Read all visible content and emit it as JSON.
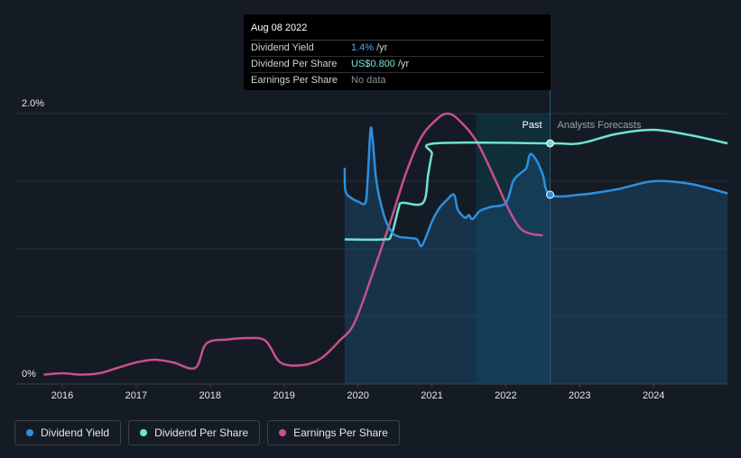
{
  "tooltip": {
    "date": "Aug 08 2022",
    "rows": [
      {
        "name": "Dividend Yield",
        "value": "1.4%",
        "unit": "/yr"
      },
      {
        "name": "Dividend Per Share",
        "value": "US$0.800",
        "unit": "/yr"
      },
      {
        "name": "Earnings Per Share",
        "value": "No data",
        "unit": ""
      }
    ]
  },
  "regions": {
    "past": "Past",
    "forecast": "Analysts Forecasts"
  },
  "legend": [
    {
      "label": "Dividend Yield",
      "color": "#2c8fe0"
    },
    {
      "label": "Dividend Per Share",
      "color": "#6fe3cf"
    },
    {
      "label": "Earnings Per Share",
      "color": "#c8508a"
    }
  ],
  "colors": {
    "background": "#151b24",
    "dividend_yield": "#2c8fe0",
    "dividend_per_share": "#6fe3cf",
    "earnings_per_share": "#c8508a",
    "past_highlight": "#0e3a4a"
  },
  "chart_data": {
    "type": "line",
    "x_ticks": [
      "2016",
      "2017",
      "2018",
      "2019",
      "2020",
      "2021",
      "2022",
      "2023",
      "2024"
    ],
    "y_tick_labels": {
      "top": "2.0%",
      "bottom": "0%"
    },
    "xlim": [
      2015.7,
      2025.0
    ],
    "ylim": [
      0,
      2.0
    ],
    "grid": true,
    "highlight_range": [
      2021.6,
      2022.6
    ],
    "forecast_start": 2022.6,
    "series": [
      {
        "name": "Dividend Yield",
        "unit": "%",
        "points": [
          [
            2019.82,
            1.6
          ],
          [
            2019.83,
            1.43
          ],
          [
            2019.9,
            1.38
          ],
          [
            2020.0,
            1.35
          ],
          [
            2020.1,
            1.34
          ],
          [
            2020.13,
            1.5
          ],
          [
            2020.17,
            1.88
          ],
          [
            2020.2,
            1.8
          ],
          [
            2020.25,
            1.5
          ],
          [
            2020.35,
            1.25
          ],
          [
            2020.45,
            1.13
          ],
          [
            2020.55,
            1.09
          ],
          [
            2020.7,
            1.08
          ],
          [
            2020.8,
            1.07
          ],
          [
            2020.85,
            1.02
          ],
          [
            2020.9,
            1.06
          ],
          [
            2021.0,
            1.2
          ],
          [
            2021.1,
            1.3
          ],
          [
            2021.2,
            1.36
          ],
          [
            2021.3,
            1.4
          ],
          [
            2021.35,
            1.29
          ],
          [
            2021.45,
            1.23
          ],
          [
            2021.5,
            1.25
          ],
          [
            2021.55,
            1.22
          ],
          [
            2021.65,
            1.28
          ],
          [
            2021.8,
            1.31
          ],
          [
            2022.0,
            1.34
          ],
          [
            2022.1,
            1.5
          ],
          [
            2022.2,
            1.56
          ],
          [
            2022.28,
            1.6
          ],
          [
            2022.33,
            1.7
          ],
          [
            2022.42,
            1.65
          ],
          [
            2022.5,
            1.55
          ],
          [
            2022.6,
            1.4
          ],
          [
            2023.0,
            1.4
          ],
          [
            2023.5,
            1.44
          ],
          [
            2024.0,
            1.5
          ],
          [
            2024.5,
            1.48
          ],
          [
            2025.0,
            1.41
          ]
        ]
      },
      {
        "name": "Dividend Per Share",
        "unit": "%",
        "points": [
          [
            2019.82,
            1.07
          ],
          [
            2020.35,
            1.07
          ],
          [
            2020.45,
            1.1
          ],
          [
            2020.55,
            1.3
          ],
          [
            2020.6,
            1.34
          ],
          [
            2020.88,
            1.34
          ],
          [
            2020.95,
            1.55
          ],
          [
            2021.0,
            1.7
          ],
          [
            2021.05,
            1.78
          ],
          [
            2022.6,
            1.78
          ],
          [
            2023.0,
            1.78
          ],
          [
            2023.5,
            1.85
          ],
          [
            2024.0,
            1.88
          ],
          [
            2024.5,
            1.84
          ],
          [
            2025.0,
            1.78
          ]
        ]
      },
      {
        "name": "Earnings Per Share",
        "unit": "%",
        "points": [
          [
            2015.75,
            0.07
          ],
          [
            2016.0,
            0.08
          ],
          [
            2016.25,
            0.07
          ],
          [
            2016.5,
            0.08
          ],
          [
            2016.75,
            0.12
          ],
          [
            2017.0,
            0.16
          ],
          [
            2017.25,
            0.18
          ],
          [
            2017.5,
            0.16
          ],
          [
            2017.8,
            0.12
          ],
          [
            2017.95,
            0.3
          ],
          [
            2018.25,
            0.33
          ],
          [
            2018.5,
            0.34
          ],
          [
            2018.75,
            0.32
          ],
          [
            2018.95,
            0.16
          ],
          [
            2019.25,
            0.14
          ],
          [
            2019.5,
            0.19
          ],
          [
            2019.75,
            0.32
          ],
          [
            2019.95,
            0.45
          ],
          [
            2020.2,
            0.82
          ],
          [
            2020.45,
            1.22
          ],
          [
            2020.65,
            1.56
          ],
          [
            2020.85,
            1.82
          ],
          [
            2021.05,
            1.95
          ],
          [
            2021.2,
            2.0
          ],
          [
            2021.35,
            1.96
          ],
          [
            2021.6,
            1.8
          ],
          [
            2021.85,
            1.52
          ],
          [
            2022.05,
            1.28
          ],
          [
            2022.2,
            1.15
          ],
          [
            2022.35,
            1.11
          ],
          [
            2022.5,
            1.1
          ]
        ]
      }
    ]
  }
}
